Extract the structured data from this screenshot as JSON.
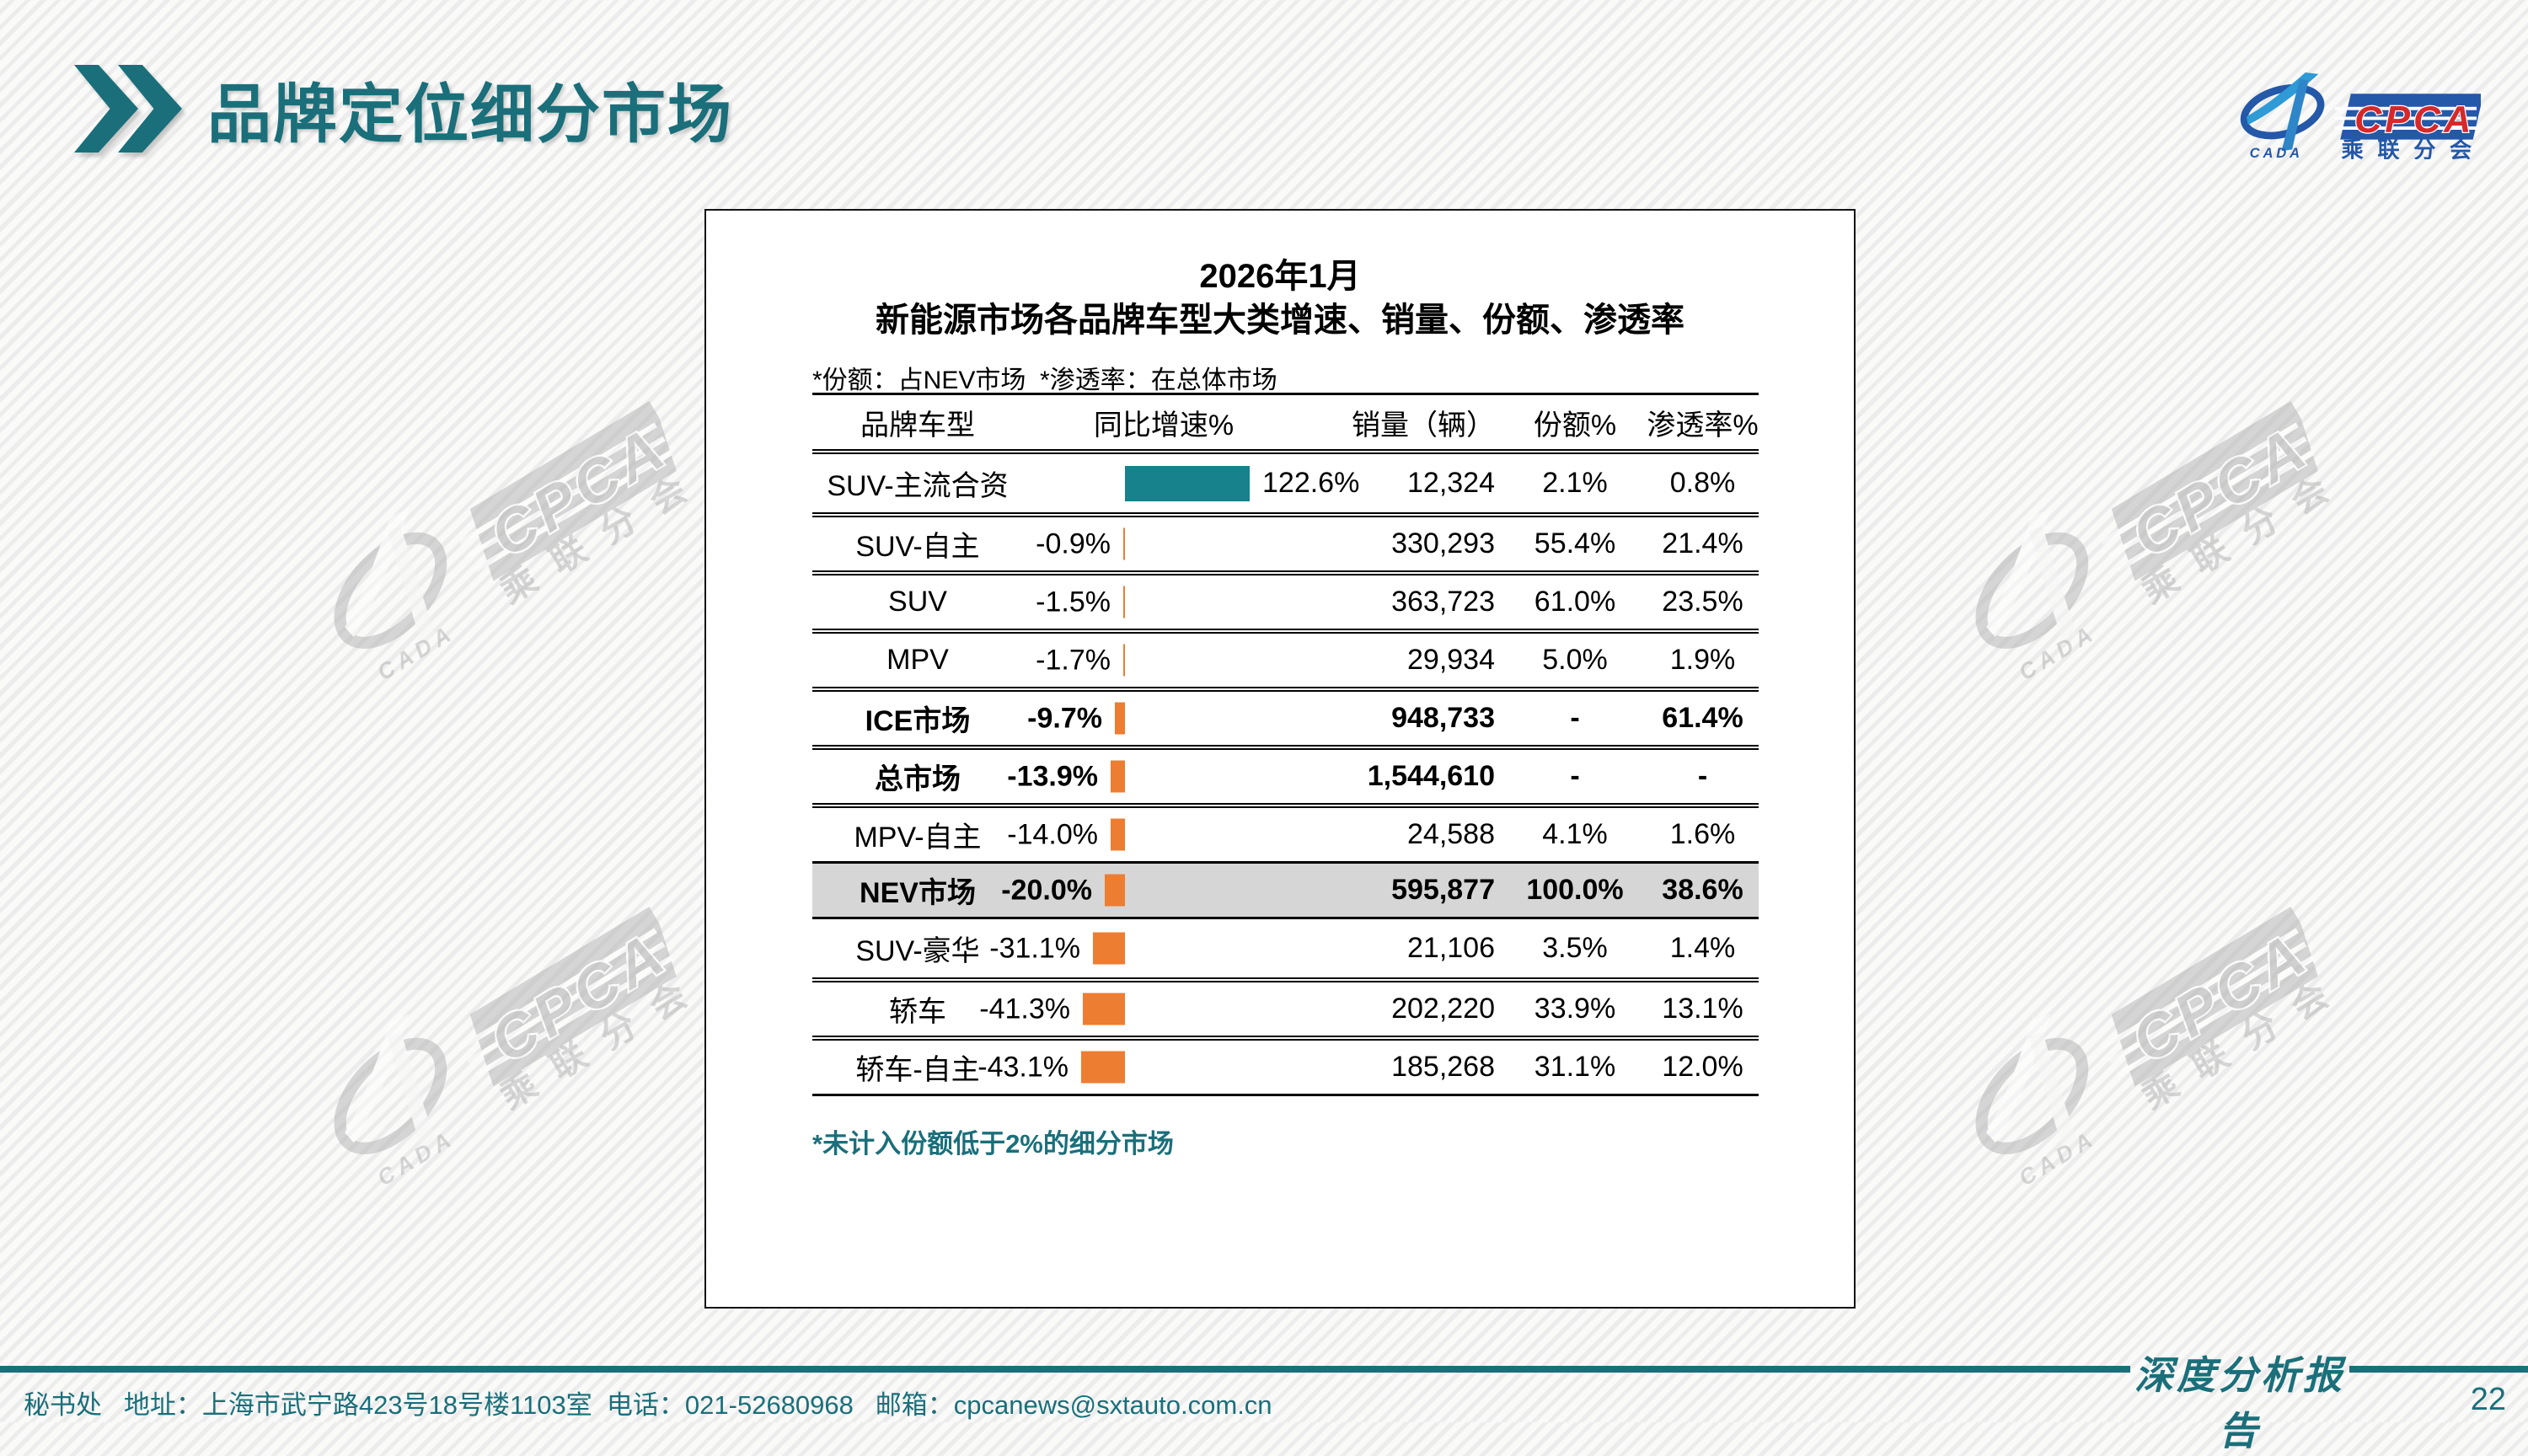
{
  "page": {
    "title": "品牌定位细分市场",
    "page_number": "22",
    "report_label": "深度分析报告",
    "footer": {
      "contact_prefix": "秘书处   地址：上海市武宁路423号18号楼1103室  电话：021-52680968   邮箱：",
      "email": "cpcanews@sxtauto.com.cn"
    }
  },
  "brand": {
    "cpca": "CPCA",
    "cada": "CADA",
    "branch": "乘联分会"
  },
  "card": {
    "title_line1": "2026年1月",
    "title_line2": "新能源市场各品牌车型大类增速、销量、份额、渗透率",
    "note": "*份额：占NEV市场  *渗透率：在总体市场",
    "footnote": "*未计入份额低于2%的细分市场"
  },
  "theme": {
    "teal": "#1A6F7A",
    "bar_positive": "#17818C",
    "bar_negative": "#ED7D31",
    "highlight_bg": "#D6D6D6",
    "logo_blue": "#2458A8",
    "logo_lightblue": "#2E9AD6",
    "logo_red": "#D7282A"
  },
  "chart_data": {
    "type": "bar",
    "orientation": "horizontal",
    "title": "2026年1月 新能源市场各品牌车型大类增速、销量、份额、渗透率",
    "note": "*份额：占NEV市场 *渗透率：在总体市场",
    "footnote": "*未计入份额低于2%的细分市场",
    "legend_position": "none",
    "grid": false,
    "axis": {
      "zero_centered": true,
      "xlabel": "同比增速%"
    },
    "columns": [
      "品牌车型",
      "同比增速%",
      "销量（辆）",
      "份额%",
      "渗透率%"
    ],
    "categories": [
      "SUV-主流合资",
      "SUV-自主",
      "SUV",
      "MPV",
      "ICE市场",
      "总市场",
      "MPV-自主",
      "NEV市场",
      "SUV-豪华",
      "轿车",
      "轿车-自主"
    ],
    "series": [
      {
        "name": "同比增速%",
        "values": [
          122.6,
          -0.9,
          -1.5,
          -1.7,
          -9.7,
          -13.9,
          -14.0,
          -20.0,
          -31.1,
          -41.3,
          -43.1
        ]
      }
    ],
    "rows": [
      {
        "category": "SUV-主流合资",
        "growth_pct": 122.6,
        "growth_label": "122.6%",
        "sales": "12,324",
        "share": "2.1%",
        "penetration": "0.8%",
        "bold": false,
        "highlight": false
      },
      {
        "category": "SUV-自主",
        "growth_pct": -0.9,
        "growth_label": "-0.9%",
        "sales": "330,293",
        "share": "55.4%",
        "penetration": "21.4%",
        "bold": false,
        "highlight": false
      },
      {
        "category": "SUV",
        "growth_pct": -1.5,
        "growth_label": "-1.5%",
        "sales": "363,723",
        "share": "61.0%",
        "penetration": "23.5%",
        "bold": false,
        "highlight": false
      },
      {
        "category": "MPV",
        "growth_pct": -1.7,
        "growth_label": "-1.7%",
        "sales": "29,934",
        "share": "5.0%",
        "penetration": "1.9%",
        "bold": false,
        "highlight": false
      },
      {
        "category": "ICE市场",
        "growth_pct": -9.7,
        "growth_label": "-9.7%",
        "sales": "948,733",
        "share": "-",
        "penetration": "61.4%",
        "bold": true,
        "highlight": false
      },
      {
        "category": "总市场",
        "growth_pct": -13.9,
        "growth_label": "-13.9%",
        "sales": "1,544,610",
        "share": "-",
        "penetration": "-",
        "bold": true,
        "highlight": false
      },
      {
        "category": "MPV-自主",
        "growth_pct": -14.0,
        "growth_label": "-14.0%",
        "sales": "24,588",
        "share": "4.1%",
        "penetration": "1.6%",
        "bold": false,
        "highlight": false
      },
      {
        "category": "NEV市场",
        "growth_pct": -20.0,
        "growth_label": "-20.0%",
        "sales": "595,877",
        "share": "100.0%",
        "penetration": "38.6%",
        "bold": true,
        "highlight": true
      },
      {
        "category": "SUV-豪华",
        "growth_pct": -31.1,
        "growth_label": "-31.1%",
        "sales": "21,106",
        "share": "3.5%",
        "penetration": "1.4%",
        "bold": false,
        "highlight": false
      },
      {
        "category": "轿车",
        "growth_pct": -41.3,
        "growth_label": "-41.3%",
        "sales": "202,220",
        "share": "33.9%",
        "penetration": "13.1%",
        "bold": false,
        "highlight": false
      },
      {
        "category": "轿车-自主",
        "growth_pct": -43.1,
        "growth_label": "-43.1%",
        "sales": "185,268",
        "share": "31.1%",
        "penetration": "12.0%",
        "bold": false,
        "highlight": false
      }
    ]
  }
}
